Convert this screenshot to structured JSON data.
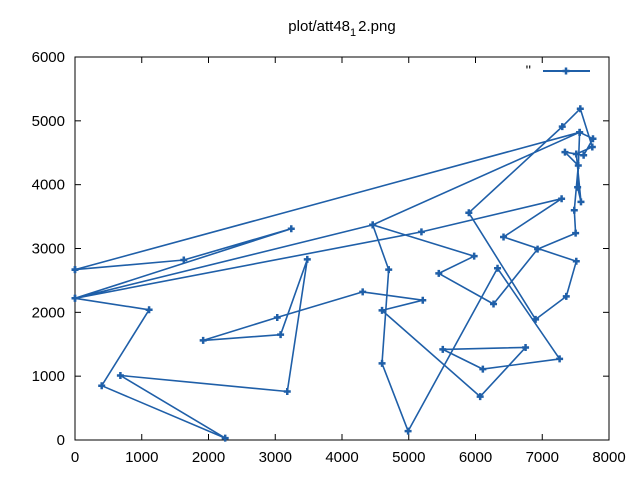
{
  "chart_data": {
    "type": "line",
    "title": "plot/att48_1 2.png",
    "title_main": "plot/att48",
    "title_sub": "1",
    "title_tail": "2.png",
    "xlabel": "",
    "ylabel": "",
    "xlim": [
      0,
      8000
    ],
    "ylim": [
      0,
      6000
    ],
    "xticks": [
      "0",
      "1000",
      "2000",
      "3000",
      "4000",
      "5000",
      "6000",
      "7000",
      "8000"
    ],
    "yticks": [
      "0",
      "1000",
      "2000",
      "3000",
      "4000",
      "5000",
      "6000"
    ],
    "grid": false,
    "legend_position": "top-right",
    "series": [
      {
        "name": "''",
        "color": "#1f5fa8",
        "marker": "plus",
        "points": [
          [
            0,
            2670
          ],
          [
            1630,
            2820
          ],
          [
            3240,
            3310
          ],
          [
            0,
            2220
          ],
          [
            5190,
            3260
          ],
          [
            7290,
            3780
          ],
          [
            6420,
            3180
          ],
          [
            7510,
            2800
          ],
          [
            7360,
            2250
          ],
          [
            6900,
            1890
          ],
          [
            5900,
            3560
          ],
          [
            7300,
            4910
          ],
          [
            7570,
            5190
          ],
          [
            7750,
            4590
          ],
          [
            7510,
            4480
          ],
          [
            7580,
            3730
          ],
          [
            7530,
            3960
          ],
          [
            7560,
            4820
          ],
          [
            7760,
            4720
          ],
          [
            7620,
            4460
          ],
          [
            7340,
            4510
          ],
          [
            7540,
            4300
          ],
          [
            7480,
            3600
          ],
          [
            7500,
            3240
          ],
          [
            6930,
            2990
          ],
          [
            6270,
            2130
          ],
          [
            5450,
            2610
          ],
          [
            5980,
            2880
          ],
          [
            4460,
            3370
          ],
          [
            4700,
            2670
          ],
          [
            4600,
            1200
          ],
          [
            4990,
            140
          ],
          [
            6330,
            2690
          ],
          [
            7260,
            1270
          ],
          [
            6110,
            1110
          ],
          [
            5510,
            1420
          ],
          [
            6750,
            1450
          ],
          [
            6070,
            680
          ],
          [
            4600,
            2030
          ],
          [
            5210,
            2190
          ],
          [
            4310,
            2320
          ],
          [
            3030,
            1920
          ],
          [
            1920,
            1560
          ],
          [
            3080,
            1650
          ],
          [
            3480,
            2830
          ],
          [
            3180,
            760
          ],
          [
            680,
            1010
          ],
          [
            2250,
            30
          ],
          [
            400,
            850
          ],
          [
            1110,
            2040
          ],
          [
            0,
            2220
          ],
          [
            4460,
            3370
          ],
          [
            7560,
            4820
          ],
          [
            0,
            2670
          ]
        ]
      }
    ]
  }
}
